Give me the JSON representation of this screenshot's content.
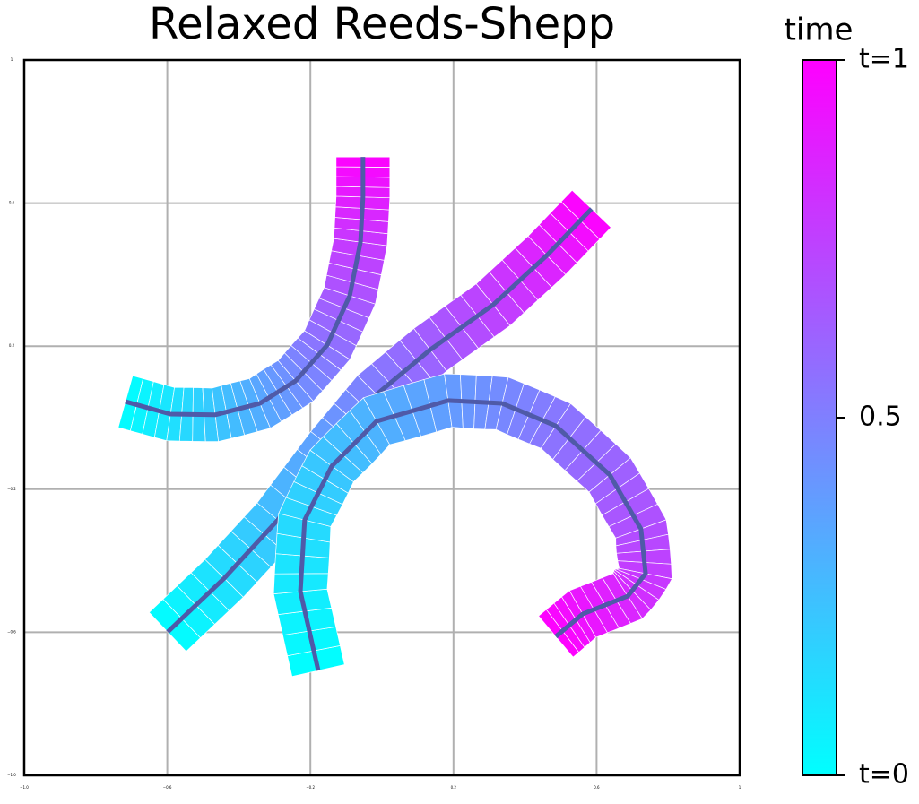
{
  "chart_data": {
    "type": "trajectory",
    "title": "Relaxed Reeds-Shepp",
    "colorbar_label": "time",
    "colormap": [
      "#00ffff",
      "#ff00ff"
    ],
    "line_color": "#4f5aa8",
    "cbar_ticks": [
      {
        "value": 0,
        "label": "t=0"
      },
      0.5,
      {
        "value": 1,
        "label": "t=1"
      }
    ],
    "xlim": [
      -1,
      1
    ],
    "ylim": [
      -1,
      1
    ],
    "xticks": [
      {
        "value": -1,
        "label": "−1.0"
      },
      {
        "value": -0.6,
        "label": "−0.6"
      },
      {
        "value": -0.2,
        "label": "−0.2"
      },
      0.2,
      0.6,
      1.0
    ],
    "yticks": [
      {
        "value": -1,
        "label": "−1.0"
      },
      {
        "value": -0.6,
        "label": "−0.6"
      },
      {
        "value": -0.2,
        "label": "−0.2"
      },
      0.2,
      0.6,
      1.0
    ],
    "grid": true,
    "paths": [
      {
        "x": [
          -0.717,
          -0.591,
          -0.466,
          -0.341,
          -0.241,
          -0.153,
          -0.09,
          -0.06,
          -0.053,
          -0.053
        ],
        "y": [
          0.045,
          0.01,
          0.008,
          0.04,
          0.103,
          0.203,
          0.341,
          0.491,
          0.617,
          0.729
        ]
      },
      {
        "x": [
          -0.599,
          -0.441,
          -0.291,
          -0.14,
          -0.015,
          0.135,
          0.311,
          0.461,
          0.586
        ],
        "y": [
          -0.599,
          -0.449,
          -0.286,
          -0.085,
          0.065,
          0.19,
          0.316,
          0.454,
          0.584
        ]
      },
      {
        "x": [
          -0.178,
          -0.228,
          -0.216,
          -0.14,
          -0.015,
          0.185,
          0.336,
          0.486,
          0.637,
          0.724,
          0.737,
          0.687,
          0.561,
          0.486
        ],
        "y": [
          -0.707,
          -0.486,
          -0.286,
          -0.135,
          -0.01,
          0.048,
          0.04,
          -0.023,
          -0.16,
          -0.311,
          -0.436,
          -0.499,
          -0.549,
          -0.612
        ]
      }
    ]
  }
}
